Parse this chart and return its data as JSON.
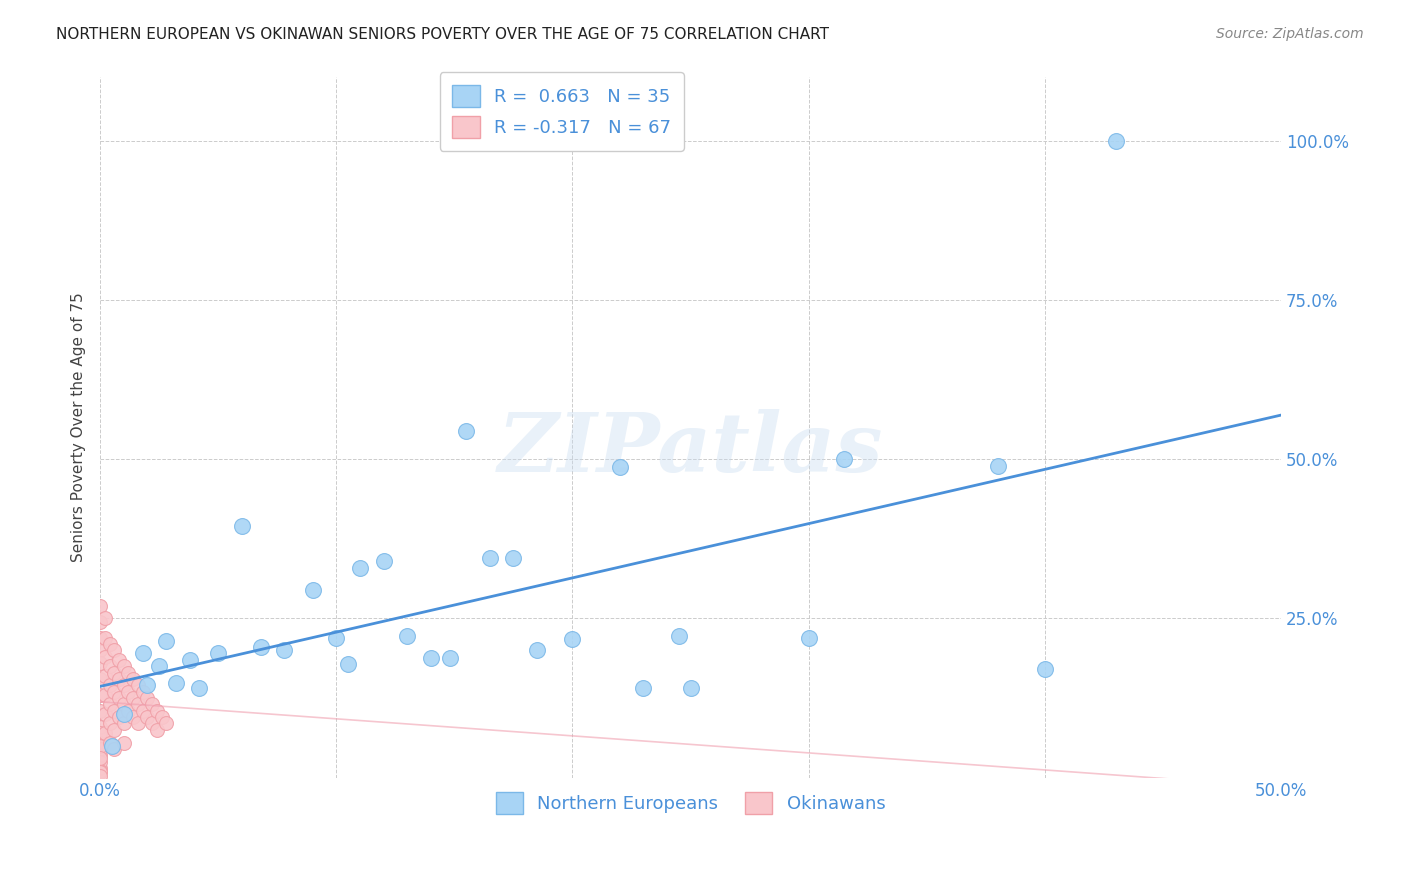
{
  "title": "NORTHERN EUROPEAN VS OKINAWAN SENIORS POVERTY OVER THE AGE OF 75 CORRELATION CHART",
  "source": "Source: ZipAtlas.com",
  "ylabel": "Seniors Poverty Over the Age of 75",
  "xlabel": "",
  "xlim": [
    0.0,
    0.5
  ],
  "ylim": [
    0.0,
    1.1
  ],
  "xticks": [
    0.0,
    0.1,
    0.2,
    0.3,
    0.4,
    0.5
  ],
  "xtick_labels": [
    "0.0%",
    "",
    "",
    "",
    "",
    "50.0%"
  ],
  "yticks": [
    0.25,
    0.5,
    0.75,
    1.0
  ],
  "ytick_labels": [
    "25.0%",
    "50.0%",
    "75.0%",
    "100.0%"
  ],
  "blue_color": "#A8D4F5",
  "pink_color": "#F9C6CB",
  "blue_edge": "#7BB8E8",
  "pink_edge": "#F0A0A8",
  "line_blue": "#4A90D9",
  "line_pink": "#F0A0B0",
  "R_blue": 0.663,
  "N_blue": 35,
  "R_pink": -0.317,
  "N_pink": 67,
  "watermark": "ZIPatlas",
  "northern_europeans_x": [
    0.005,
    0.01,
    0.018,
    0.02,
    0.025,
    0.028,
    0.032,
    0.038,
    0.042,
    0.05,
    0.06,
    0.068,
    0.078,
    0.09,
    0.1,
    0.105,
    0.11,
    0.12,
    0.13,
    0.14,
    0.148,
    0.155,
    0.165,
    0.175,
    0.185,
    0.2,
    0.22,
    0.23,
    0.245,
    0.25,
    0.3,
    0.315,
    0.38,
    0.4,
    0.43
  ],
  "northern_europeans_y": [
    0.05,
    0.1,
    0.195,
    0.145,
    0.175,
    0.215,
    0.148,
    0.185,
    0.14,
    0.195,
    0.395,
    0.205,
    0.2,
    0.295,
    0.22,
    0.178,
    0.33,
    0.34,
    0.222,
    0.188,
    0.188,
    0.545,
    0.345,
    0.345,
    0.2,
    0.218,
    0.488,
    0.14,
    0.222,
    0.14,
    0.22,
    0.5,
    0.49,
    0.17,
    1.0
  ],
  "okinawans_x": [
    0.0,
    0.0,
    0.0,
    0.0,
    0.0,
    0.0,
    0.0,
    0.0,
    0.0,
    0.0,
    0.0,
    0.0,
    0.0,
    0.0,
    0.0,
    0.0,
    0.0,
    0.0,
    0.0,
    0.0,
    0.002,
    0.002,
    0.002,
    0.002,
    0.002,
    0.002,
    0.002,
    0.004,
    0.004,
    0.004,
    0.004,
    0.004,
    0.004,
    0.006,
    0.006,
    0.006,
    0.006,
    0.006,
    0.006,
    0.008,
    0.008,
    0.008,
    0.008,
    0.01,
    0.01,
    0.01,
    0.01,
    0.01,
    0.012,
    0.012,
    0.012,
    0.014,
    0.014,
    0.014,
    0.016,
    0.016,
    0.016,
    0.018,
    0.018,
    0.02,
    0.02,
    0.022,
    0.022,
    0.024,
    0.024,
    0.026,
    0.028
  ],
  "okinawans_y": [
    0.27,
    0.245,
    0.22,
    0.2,
    0.18,
    0.155,
    0.13,
    0.105,
    0.08,
    0.055,
    0.035,
    0.015,
    0.07,
    0.045,
    0.025,
    0.01,
    0.05,
    0.03,
    0.008,
    0.003,
    0.25,
    0.22,
    0.19,
    0.16,
    0.13,
    0.1,
    0.07,
    0.21,
    0.175,
    0.145,
    0.115,
    0.085,
    0.055,
    0.2,
    0.165,
    0.135,
    0.105,
    0.075,
    0.045,
    0.185,
    0.155,
    0.125,
    0.095,
    0.175,
    0.145,
    0.115,
    0.085,
    0.055,
    0.165,
    0.135,
    0.105,
    0.155,
    0.125,
    0.095,
    0.145,
    0.115,
    0.085,
    0.135,
    0.105,
    0.125,
    0.095,
    0.115,
    0.085,
    0.105,
    0.075,
    0.095,
    0.085
  ]
}
